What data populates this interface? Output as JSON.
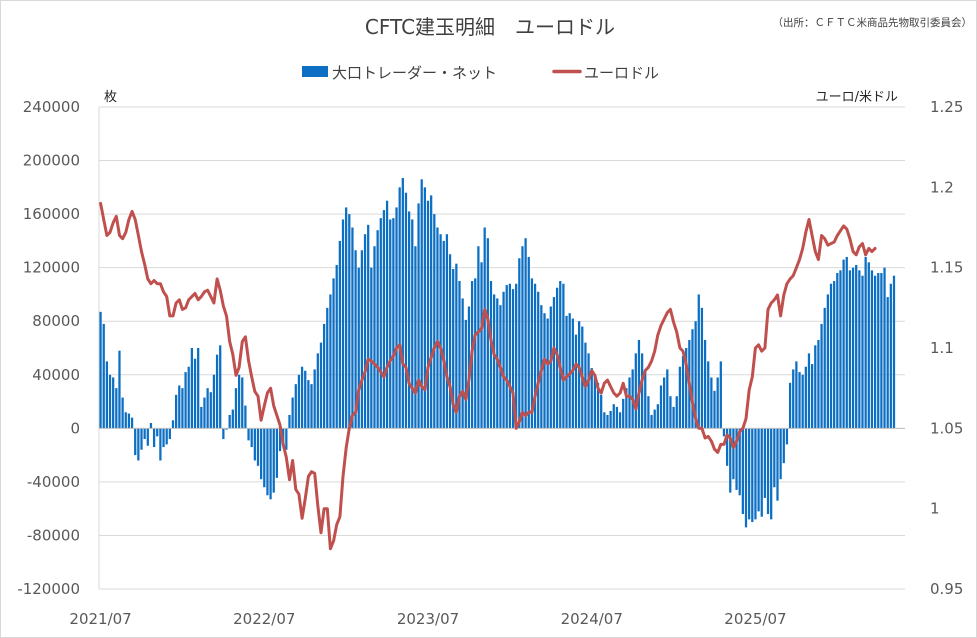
{
  "chart_data": {
    "type": "bar+line",
    "title": "CFTC建玉明細　ユーロドル",
    "source": "（出所：ＣＦＴＣ米商品先物取引委員会）",
    "left_axis_label": "枚",
    "right_axis_label": "ユーロ/米ドル",
    "left_ylim": [
      -120000,
      240000
    ],
    "left_ticks": [
      240000,
      200000,
      160000,
      120000,
      80000,
      40000,
      0,
      -40000,
      -80000,
      -120000
    ],
    "left_tick_labels": [
      "240000",
      "200000",
      "160000",
      "120000",
      "80000",
      "40000",
      "0",
      "-40000",
      "-80000",
      "-120000"
    ],
    "right_ylim": [
      0.95,
      1.25
    ],
    "right_ticks": [
      1.25,
      1.2,
      1.15,
      1.1,
      1.05,
      1,
      0.95
    ],
    "right_tick_labels": [
      "1.25",
      "1.2",
      "1.15",
      "1.1",
      "1.05",
      "1",
      "0.95"
    ],
    "x_tick_labels": [
      "2021/07",
      "2022/07",
      "2023/07",
      "2024/07",
      "2025/07"
    ],
    "x_tick_positions": [
      0,
      52,
      104,
      156,
      208
    ],
    "grid": true,
    "legend_position": "top-center",
    "series": [
      {
        "name": "大口トレーダー・ネット",
        "type": "bar",
        "axis": "left",
        "color": "#0c6fc3",
        "values": [
          87000,
          78000,
          50000,
          40000,
          38000,
          30000,
          58000,
          23000,
          12000,
          11000,
          8000,
          -20000,
          -24000,
          -16000,
          -8000,
          -13000,
          4000,
          -14000,
          -6000,
          -24000,
          -14000,
          -12000,
          -8000,
          6000,
          25000,
          32000,
          30000,
          42000,
          46000,
          60000,
          52000,
          60000,
          16000,
          23000,
          30000,
          27000,
          40000,
          55000,
          62000,
          -8000,
          -1000,
          10000,
          14000,
          30000,
          40000,
          38000,
          17000,
          -9000,
          -14000,
          -24000,
          -28000,
          -38000,
          -44000,
          -50000,
          -53000,
          -48000,
          -37000,
          -17000,
          -12000,
          -16000,
          10000,
          23000,
          33000,
          40000,
          46000,
          43000,
          36000,
          33000,
          44000,
          56000,
          64000,
          78000,
          90000,
          100000,
          112000,
          122000,
          140000,
          156000,
          165000,
          160000,
          150000,
          133000,
          120000,
          133000,
          145000,
          152000,
          120000,
          136000,
          148000,
          157000,
          163000,
          170000,
          156000,
          157000,
          165000,
          180000,
          187000,
          176000,
          162000,
          156000,
          136000,
          168000,
          186000,
          180000,
          170000,
          174000,
          160000,
          150000,
          145000,
          140000,
          145000,
          130000,
          119000,
          123000,
          110000,
          97000,
          81000,
          91000,
          110000,
          112000,
          136000,
          124000,
          150000,
          142000,
          110000,
          100000,
          97000,
          92000,
          102000,
          107000,
          108000,
          104000,
          108000,
          127000,
          136000,
          142000,
          128000,
          112000,
          108000,
          102000,
          92000,
          86000,
          82000,
          91000,
          98000,
          105000,
          110000,
          108000,
          84000,
          86000,
          82000,
          70000,
          80000,
          76000,
          64000,
          56000,
          45000,
          40000,
          34000,
          25000,
          12000,
          10000,
          13000,
          18000,
          16000,
          12000,
          22000,
          30000,
          38000,
          44000,
          56000,
          66000,
          56000,
          44000,
          24000,
          10000,
          14000,
          18000,
          32000,
          38000,
          44000,
          24000,
          16000,
          24000,
          46000,
          54000,
          60000,
          66000,
          74000,
          80000,
          100000,
          90000,
          66000,
          50000,
          38000,
          28000,
          38000,
          50000,
          -6000,
          -28000,
          -48000,
          -38000,
          -46000,
          -50000,
          -64000,
          -74000,
          -68000,
          -70000,
          -68000,
          -62000,
          -66000,
          -52000,
          -64000,
          -68000,
          -44000,
          -54000,
          -38000,
          -26000,
          -12000,
          34000,
          44000,
          50000,
          42000,
          40000,
          46000,
          56000,
          48000,
          62000,
          66000,
          78000,
          90000,
          100000,
          108000,
          110000,
          116000,
          118000,
          126000,
          128000,
          118000,
          120000,
          122000,
          118000,
          114000,
          128000,
          124000,
          118000,
          114000,
          116000,
          116000,
          120000,
          98000,
          108000,
          114000
        ]
      },
      {
        "name": "ユーロドル",
        "type": "line",
        "axis": "right",
        "color": "#c0504d",
        "values": [
          1.19,
          1.18,
          1.17,
          1.172,
          1.178,
          1.182,
          1.17,
          1.168,
          1.172,
          1.18,
          1.185,
          1.18,
          1.17,
          1.16,
          1.152,
          1.143,
          1.14,
          1.142,
          1.14,
          1.14,
          1.135,
          1.132,
          1.12,
          1.12,
          1.128,
          1.13,
          1.124,
          1.125,
          1.13,
          1.132,
          1.134,
          1.13,
          1.132,
          1.135,
          1.136,
          1.132,
          1.128,
          1.143,
          1.136,
          1.126,
          1.12,
          1.104,
          1.096,
          1.083,
          1.088,
          1.104,
          1.107,
          1.092,
          1.082,
          1.073,
          1.07,
          1.055,
          1.064,
          1.072,
          1.075,
          1.064,
          1.058,
          1.052,
          1.04,
          1.032,
          1.018,
          1.03,
          1.012,
          1.009,
          0.994,
          1.006,
          1.02,
          1.023,
          1.022,
          1.002,
          0.985,
          1.0,
          1.0,
          0.975,
          0.98,
          0.99,
          0.995,
          1.02,
          1.038,
          1.05,
          1.058,
          1.06,
          1.074,
          1.08,
          1.085,
          1.093,
          1.092,
          1.09,
          1.088,
          1.085,
          1.082,
          1.088,
          1.092,
          1.095,
          1.1,
          1.102,
          1.09,
          1.088,
          1.078,
          1.075,
          1.072,
          1.08,
          1.076,
          1.074,
          1.088,
          1.094,
          1.1,
          1.104,
          1.1,
          1.092,
          1.082,
          1.076,
          1.065,
          1.06,
          1.07,
          1.073,
          1.068,
          1.08,
          1.098,
          1.108,
          1.11,
          1.112,
          1.124,
          1.118,
          1.105,
          1.096,
          1.093,
          1.088,
          1.082,
          1.08,
          1.076,
          1.072,
          1.05,
          1.054,
          1.06,
          1.058,
          1.06,
          1.06,
          1.07,
          1.078,
          1.086,
          1.093,
          1.09,
          1.092,
          1.1,
          1.096,
          1.088,
          1.08,
          1.082,
          1.084,
          1.086,
          1.09,
          1.088,
          1.082,
          1.076,
          1.08,
          1.086,
          1.083,
          1.075,
          1.072,
          1.078,
          1.08,
          1.076,
          1.072,
          1.07,
          1.072,
          1.078,
          1.07,
          1.07,
          1.068,
          1.062,
          1.072,
          1.08,
          1.086,
          1.088,
          1.092,
          1.098,
          1.108,
          1.114,
          1.118,
          1.122,
          1.124,
          1.116,
          1.11,
          1.1,
          1.098,
          1.09,
          1.078,
          1.066,
          1.056,
          1.05,
          1.05,
          1.044,
          1.045,
          1.042,
          1.037,
          1.035,
          1.04,
          1.04,
          1.046,
          1.044,
          1.038,
          1.042,
          1.048,
          1.05,
          1.056,
          1.074,
          1.082,
          1.1,
          1.102,
          1.098,
          1.1,
          1.124,
          1.128,
          1.13,
          1.133,
          1.12,
          1.133,
          1.14,
          1.143,
          1.145,
          1.15,
          1.155,
          1.162,
          1.172,
          1.18,
          1.17,
          1.16,
          1.155,
          1.17,
          1.168,
          1.164,
          1.165,
          1.166,
          1.17,
          1.173,
          1.176,
          1.174,
          1.168,
          1.16,
          1.158,
          1.163,
          1.165,
          1.158,
          1.162,
          1.16,
          1.162
        ]
      }
    ]
  }
}
